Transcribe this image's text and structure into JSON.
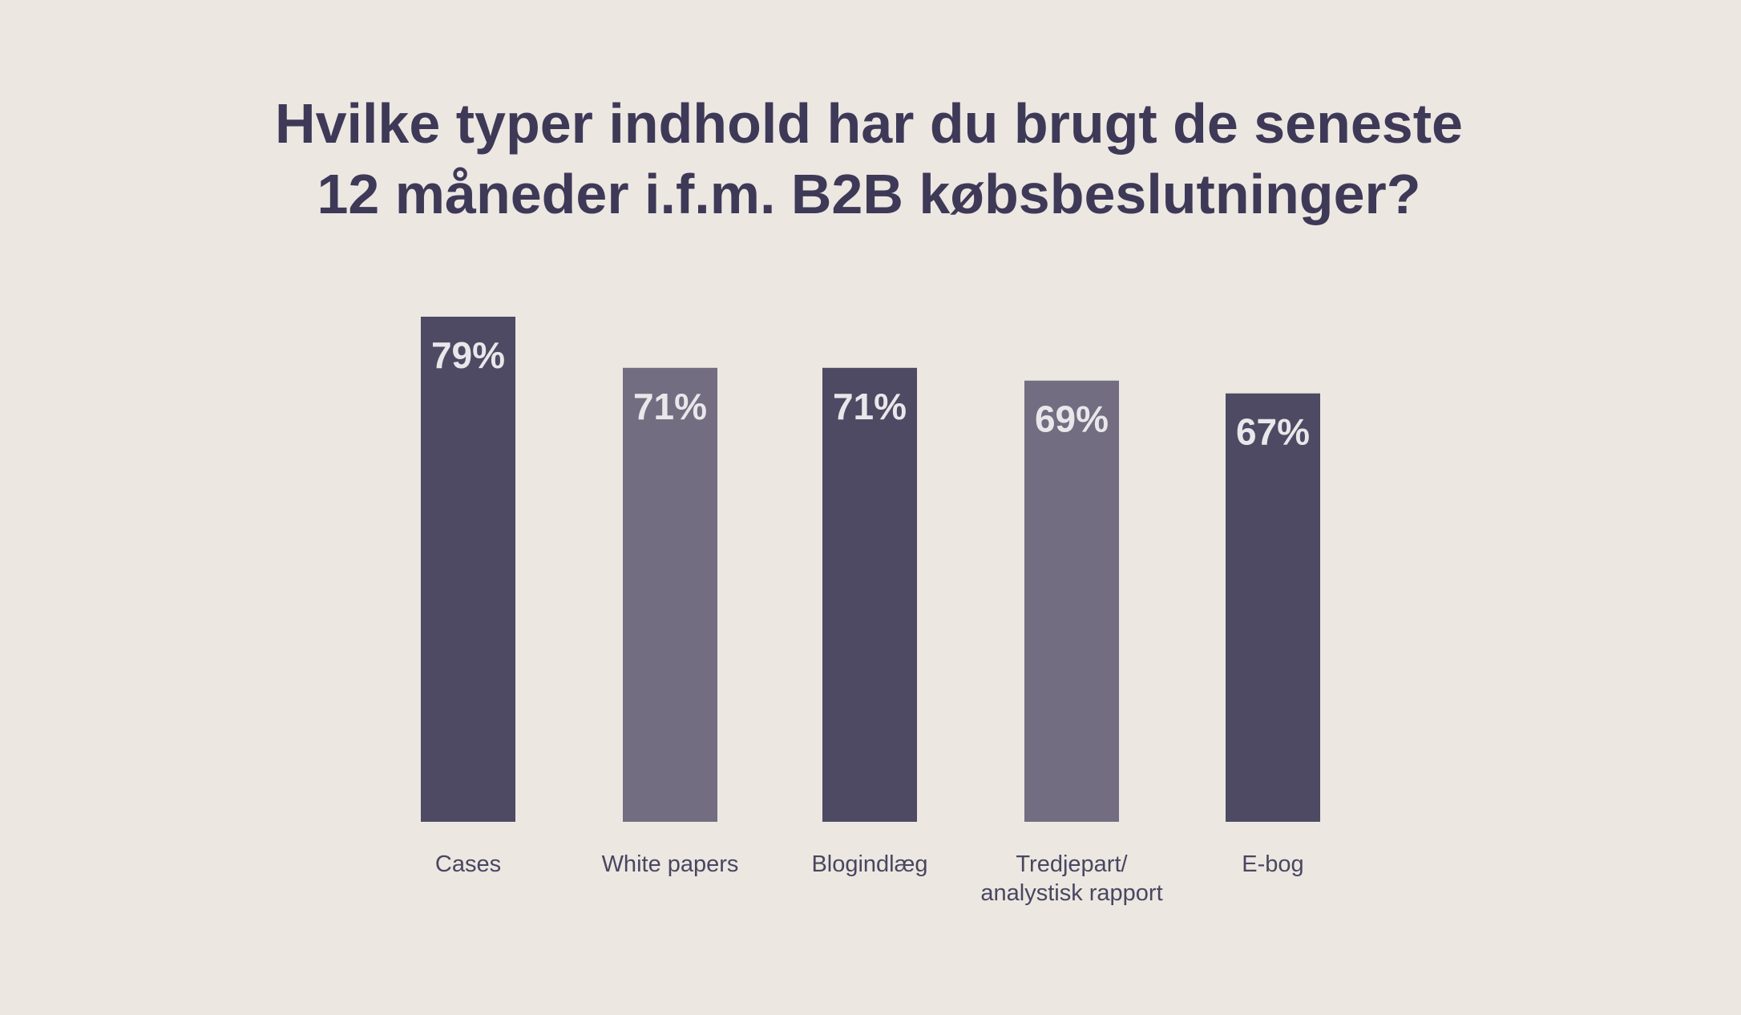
{
  "chart_data": {
    "type": "bar",
    "title": [
      "Hvilke typer indhold har du brugt de seneste",
      "12 måneder i.f.m. B2B købsbeslutninger?"
    ],
    "categories": [
      [
        "Cases"
      ],
      [
        "White papers"
      ],
      [
        "Blogindlæg"
      ],
      [
        "Tredjepart/",
        "analystisk rapport"
      ],
      [
        "E-bog"
      ]
    ],
    "values": [
      79,
      71,
      71,
      69,
      67
    ],
    "value_labels": [
      "79%",
      "71%",
      "71%",
      "69%",
      "67%"
    ],
    "unit": "%",
    "ylim": [
      0,
      100
    ],
    "xlabel": "",
    "ylabel": "",
    "grid": false,
    "colors": [
      "#4e4a63",
      "#726d80",
      "#4e4a63",
      "#726d80",
      "#4e4a63"
    ]
  }
}
